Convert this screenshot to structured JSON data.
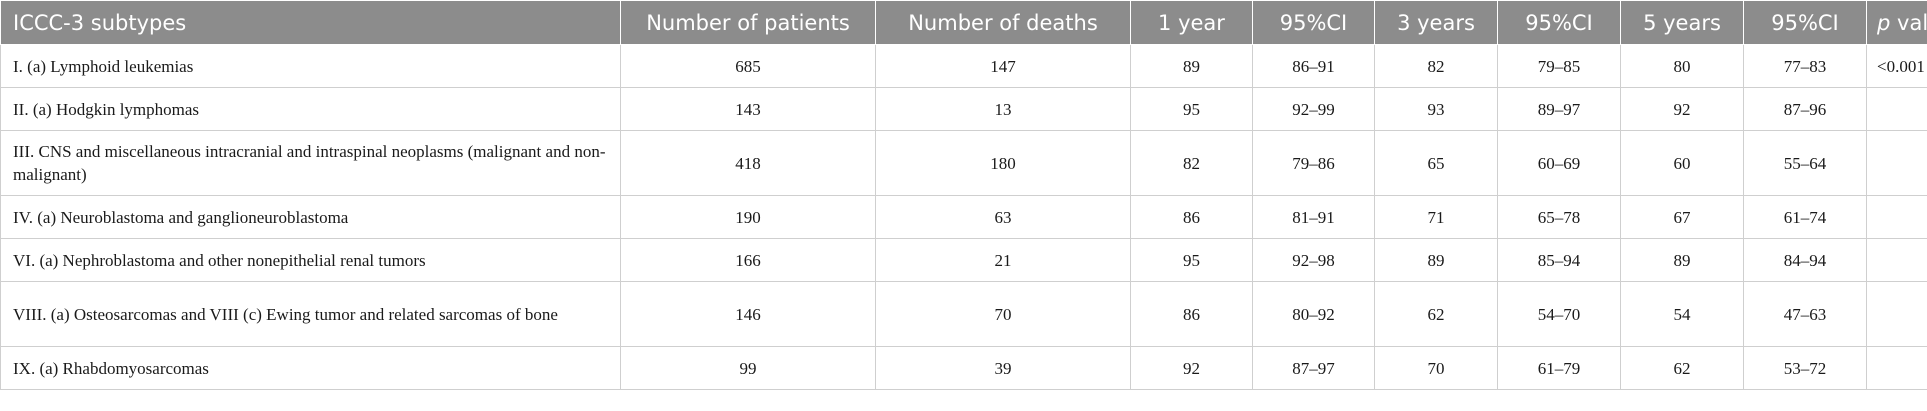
{
  "header": {
    "subtypes": "ICCC-3 subtypes",
    "patients": "Number of patients",
    "deaths": "Number of deaths",
    "y1": "1 year",
    "ci1": "95%CI",
    "y3": "3 years",
    "ci3": "95%CI",
    "y5": "5 years",
    "ci5": "95%CI",
    "p_italic": "p",
    "p_rest": " value"
  },
  "rows": [
    {
      "subtype": "I. (a) Lymphoid leukemias",
      "patients": "685",
      "deaths": "147",
      "y1": "89",
      "ci1": "86–91",
      "y3": "82",
      "ci3": "79–85",
      "y5": "80",
      "ci5": "77–83",
      "p": "<0.001"
    },
    {
      "subtype": "II. (a) Hodgkin lymphomas",
      "patients": "143",
      "deaths": "13",
      "y1": "95",
      "ci1": "92–99",
      "y3": "93",
      "ci3": "89–97",
      "y5": "92",
      "ci5": "87–96",
      "p": ""
    },
    {
      "subtype": "III. CNS and miscellaneous intracranial and intraspinal neoplasms (malignant and non-malignant)",
      "patients": "418",
      "deaths": "180",
      "y1": "82",
      "ci1": "79–86",
      "y3": "65",
      "ci3": "60–69",
      "y5": "60",
      "ci5": "55–64",
      "p": ""
    },
    {
      "subtype": "IV. (a) Neuroblastoma and ganglioneuroblastoma",
      "patients": "190",
      "deaths": "63",
      "y1": "86",
      "ci1": "81–91",
      "y3": "71",
      "ci3": "65–78",
      "y5": "67",
      "ci5": "61–74",
      "p": ""
    },
    {
      "subtype": "VI. (a) Nephroblastoma and other nonepithelial renal tumors",
      "patients": "166",
      "deaths": "21",
      "y1": "95",
      "ci1": "92–98",
      "y3": "89",
      "ci3": "85–94",
      "y5": "89",
      "ci5": "84–94",
      "p": ""
    },
    {
      "subtype": "VIII. (a) Osteosarcomas and VIII (c) Ewing tumor and related sarcomas of bone",
      "patients": "146",
      "deaths": "70",
      "y1": "86",
      "ci1": "80–92",
      "y3": "62",
      "ci3": "54–70",
      "y5": "54",
      "ci5": "47–63",
      "p": ""
    },
    {
      "subtype": "IX. (a) Rhabdomyosarcomas",
      "patients": "99",
      "deaths": "39",
      "y1": "92",
      "ci1": "87–97",
      "y3": "70",
      "ci3": "61–79",
      "y5": "62",
      "ci5": "53–72",
      "p": ""
    }
  ]
}
